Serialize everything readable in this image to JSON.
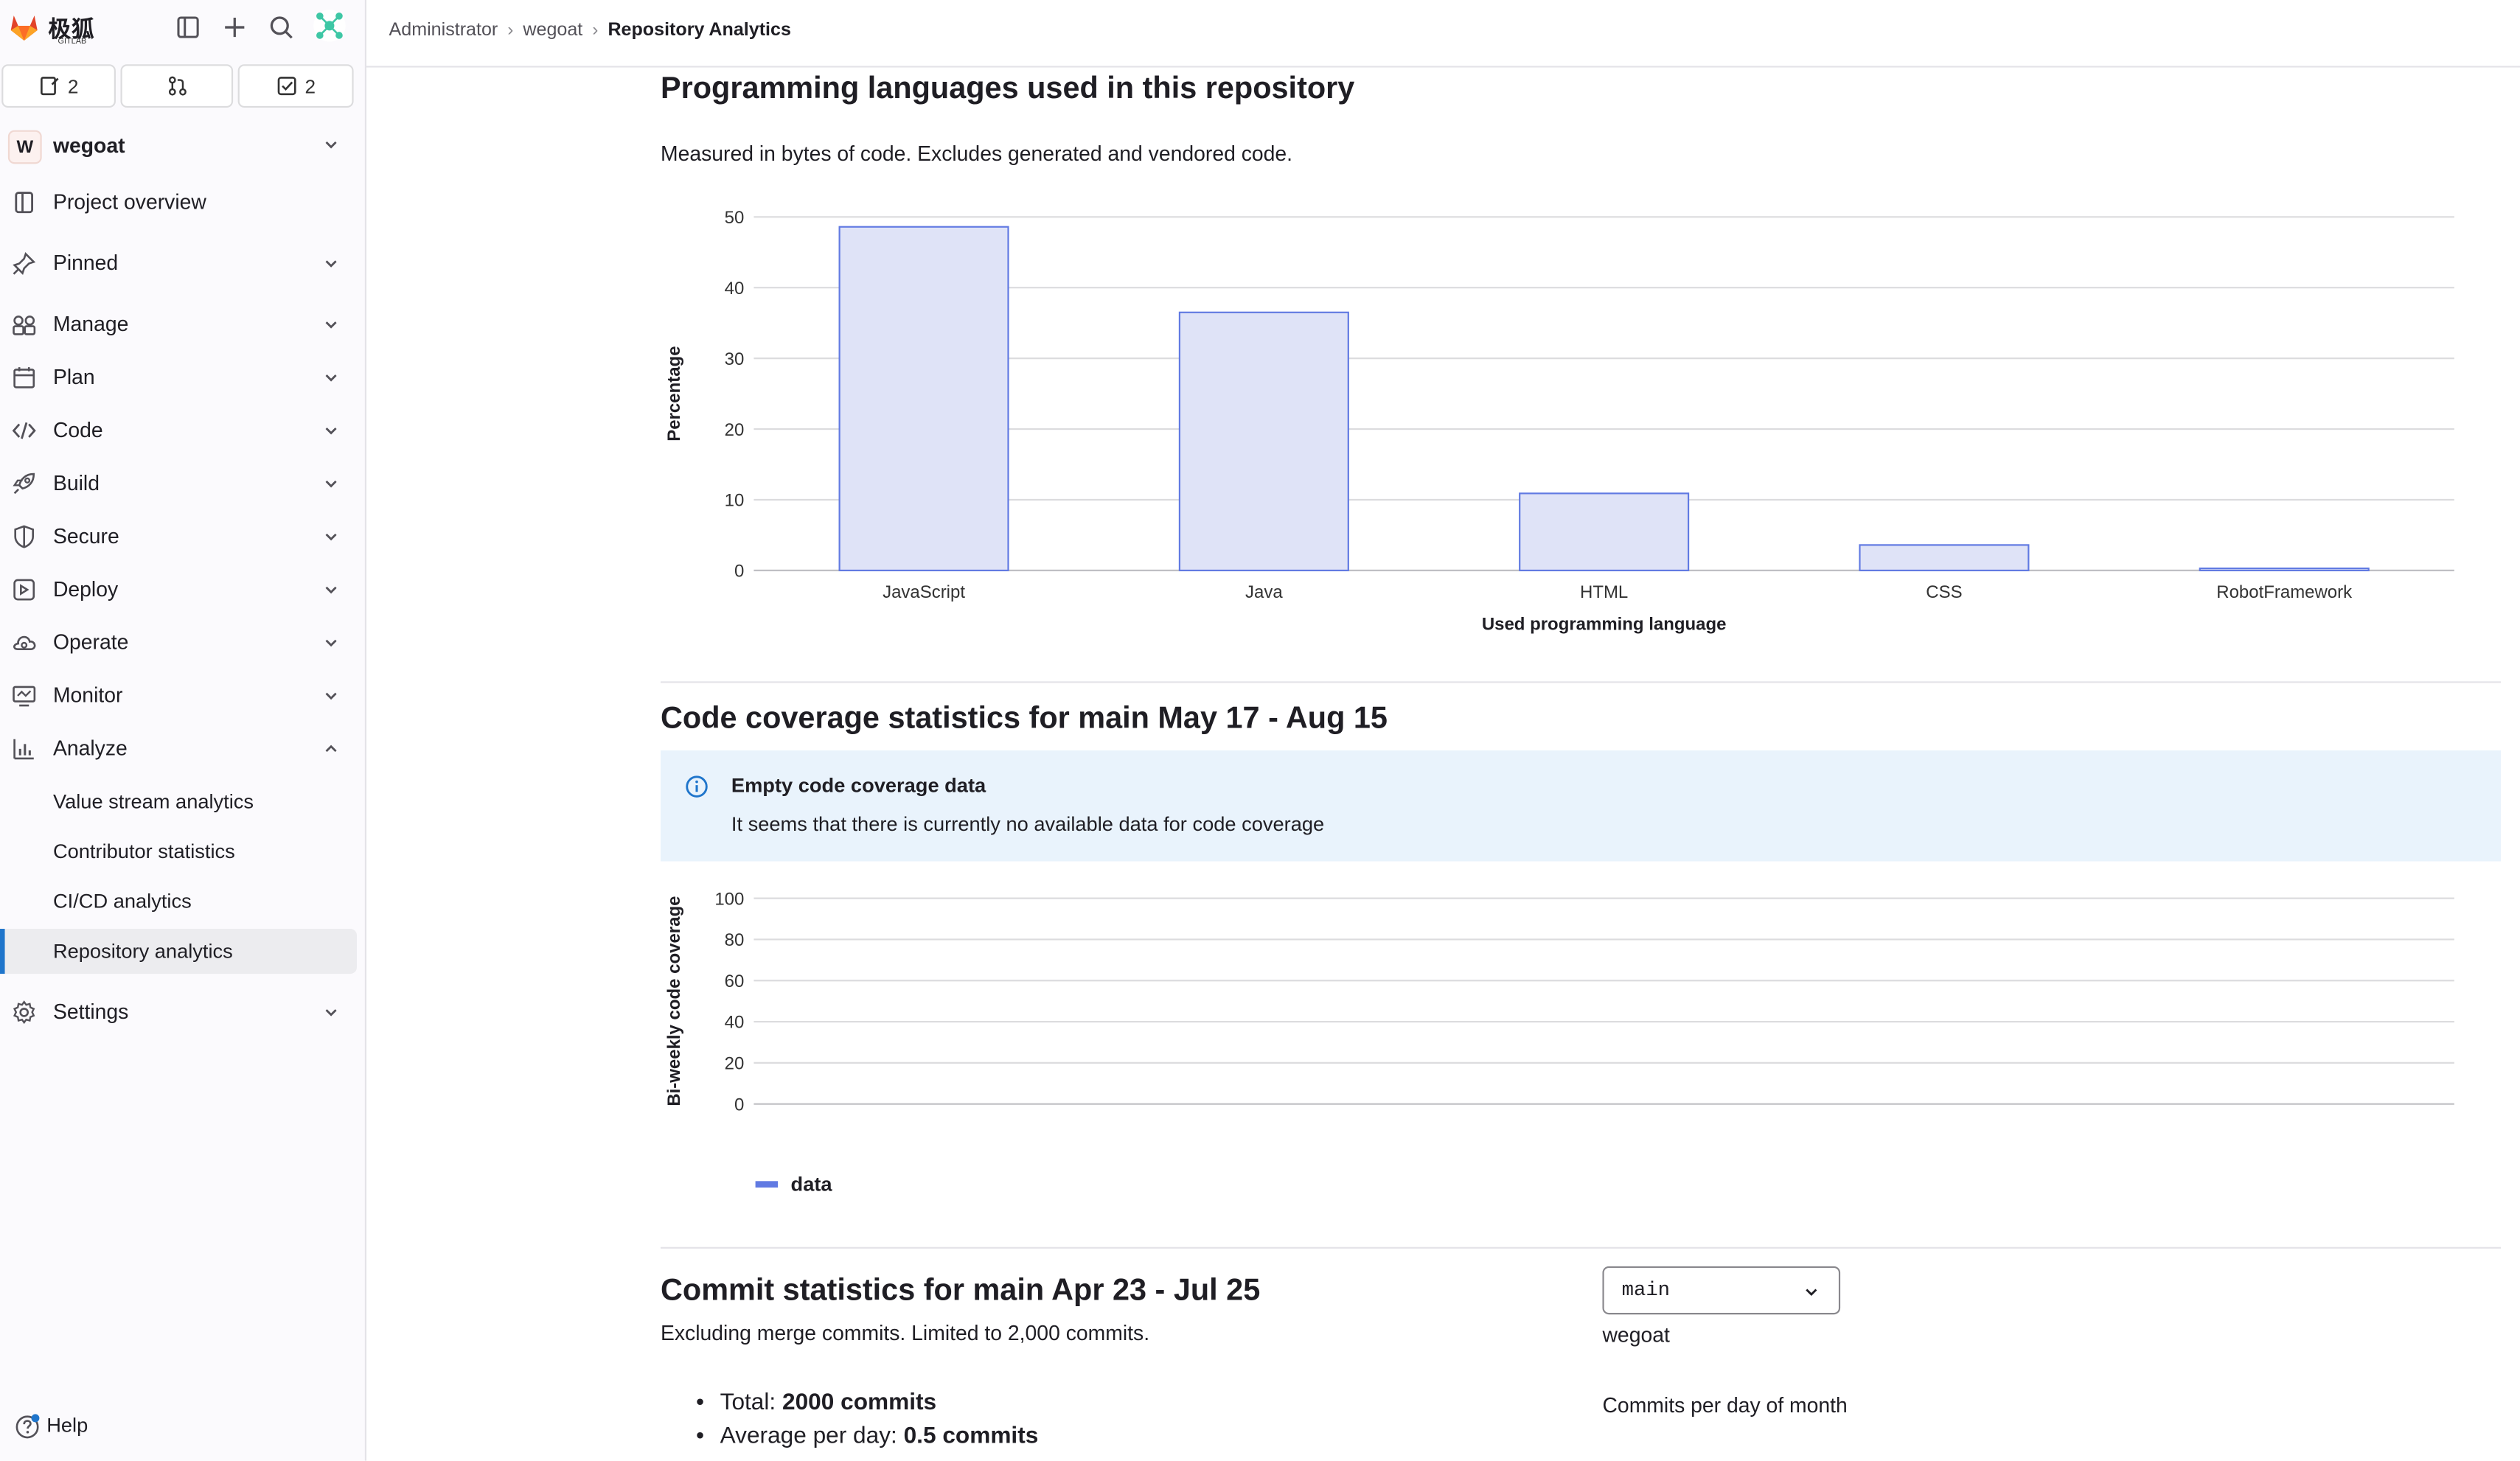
{
  "app": {
    "logo_text": "极狐",
    "logo_sub": "GITLAB",
    "brand_color": "#e24329"
  },
  "counts": {
    "issues": "2",
    "todos": "2"
  },
  "project": {
    "avatar_letter": "W",
    "name": "wegoat"
  },
  "nav": {
    "project_overview": "Project overview",
    "pinned": "Pinned",
    "manage": "Manage",
    "plan": "Plan",
    "code": "Code",
    "build": "Build",
    "secure": "Secure",
    "deploy": "Deploy",
    "operate": "Operate",
    "monitor": "Monitor",
    "analyze": "Analyze",
    "analyze_items": [
      "Value stream analytics",
      "Contributor statistics",
      "CI/CD analytics",
      "Repository analytics"
    ],
    "settings": "Settings",
    "help": "Help"
  },
  "breadcrumb": [
    "Administrator",
    "wegoat",
    "Repository Analytics"
  ],
  "languages": {
    "title": "Programming languages used in this repository",
    "subtitle": "Measured in bytes of code. Excludes generated and vendored code."
  },
  "coverage": {
    "title": "Code coverage statistics for main May 17 - Aug 15",
    "alert_title": "Empty code coverage data",
    "alert_text": "It seems that there is currently no available data for code coverage",
    "legend": "data"
  },
  "commits": {
    "title": "Commit statistics for main Apr 23 - Jul 25",
    "subtitle": "Excluding merge commits. Limited to 2,000 commits.",
    "branch": "main",
    "author": "wegoat",
    "per_day_label": "Commits per day of month",
    "total_label": "Total:",
    "total_value": "2000 commits",
    "avg_label": "Average per day:",
    "avg_value": "0.5 commits"
  },
  "chart_data": [
    {
      "type": "bar",
      "categories": [
        "JavaScript",
        "Java",
        "HTML",
        "CSS",
        "RobotFramework"
      ],
      "values": [
        48.6,
        36.5,
        10.9,
        3.6,
        0.3
      ],
      "xlabel": "Used programming language",
      "ylabel": "Percentage",
      "ylim": [
        0,
        50
      ],
      "yticks": [
        0,
        10,
        20,
        30,
        40,
        50
      ],
      "grid": true,
      "bar_fill": "#dfe3f7",
      "bar_stroke": "#617ae2"
    },
    {
      "type": "line",
      "series": [
        {
          "name": "data",
          "values": []
        }
      ],
      "ylabel": "Bi-weekly code coverage",
      "ylim": [
        0,
        100
      ],
      "yticks": [
        0,
        20,
        40,
        60,
        80,
        100
      ],
      "grid": true,
      "legend": "bottom-left",
      "line_color": "#617ae2"
    }
  ]
}
